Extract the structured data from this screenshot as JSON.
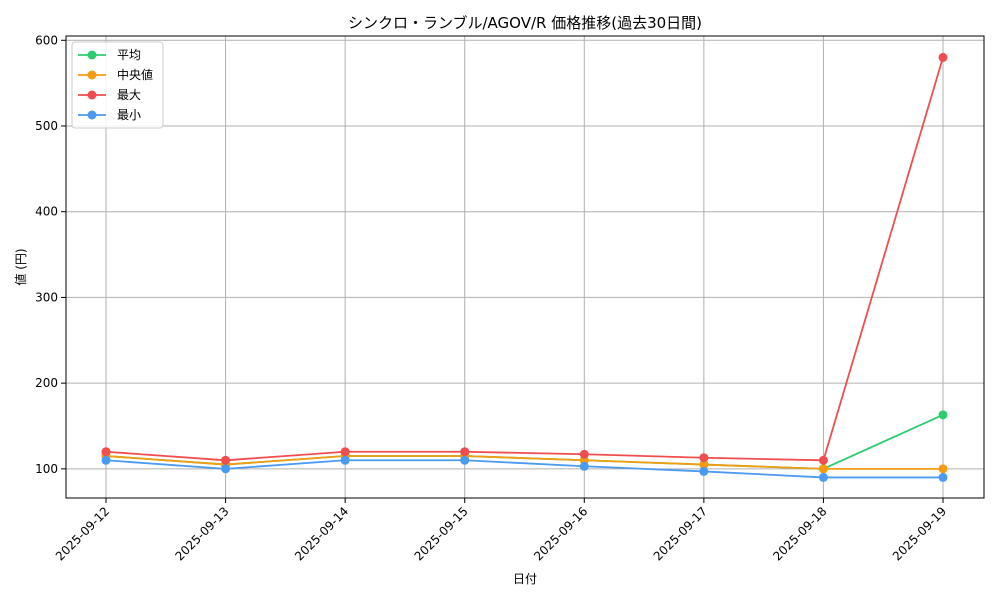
{
  "chart_data": {
    "type": "line",
    "title": "シンクロ・ランブル/AGOV/R 価格推移(過去30日間)",
    "xlabel": "日付",
    "ylabel": "値 (円)",
    "categories": [
      "2025-09-12",
      "2025-09-13",
      "2025-09-14",
      "2025-09-15",
      "2025-09-16",
      "2025-09-17",
      "2025-09-18",
      "2025-09-19"
    ],
    "yticks": [
      100,
      200,
      300,
      400,
      500,
      600
    ],
    "ylim": [
      66,
      605
    ],
    "grid": true,
    "legend_position": "top-left",
    "series": [
      {
        "name": "平均",
        "color": "#2ecc71",
        "values": [
          115,
          105,
          115,
          115,
          110,
          105,
          100,
          163
        ]
      },
      {
        "name": "中央値",
        "color": "#f39c12",
        "values": [
          115,
          105,
          115,
          115,
          110,
          105,
          100,
          100
        ]
      },
      {
        "name": "最大",
        "color": "#f04e4e",
        "values": [
          120,
          110,
          120,
          120,
          117,
          113,
          110,
          580
        ]
      },
      {
        "name": "最小",
        "color": "#4a9af0",
        "values": [
          110,
          100,
          110,
          110,
          103,
          97,
          90,
          90
        ]
      }
    ]
  }
}
